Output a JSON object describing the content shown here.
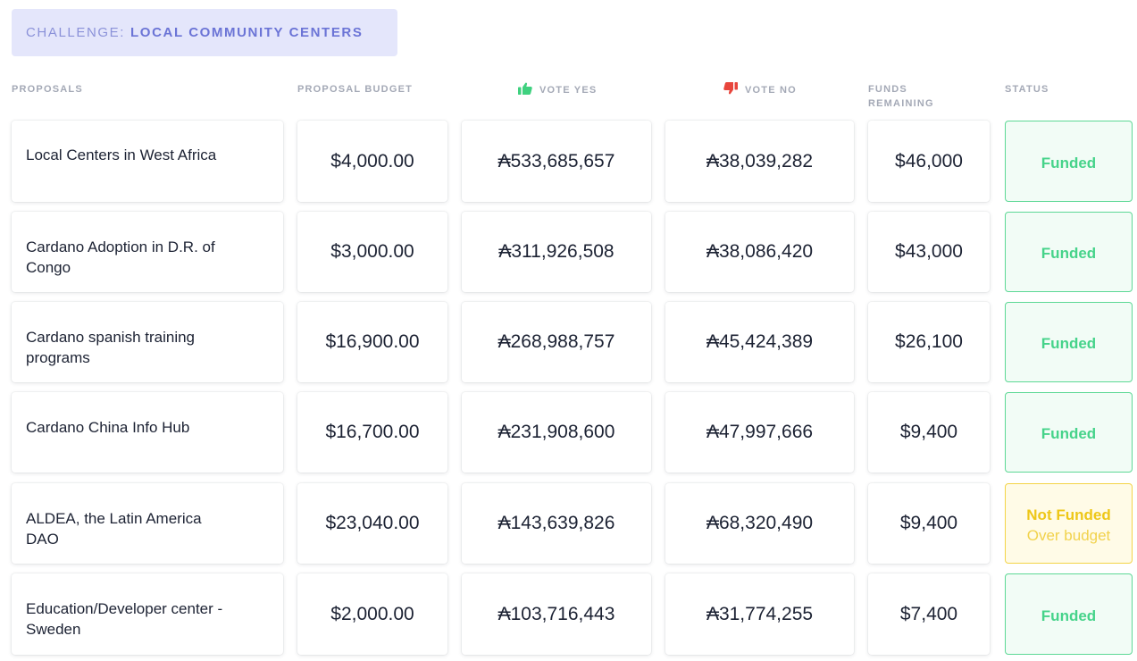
{
  "challenge": {
    "prefix": "CHALLENGE:",
    "name": "LOCAL COMMUNITY CENTERS"
  },
  "columns": {
    "proposals": "PROPOSALS",
    "budget": "PROPOSAL BUDGET",
    "vote_yes": "VOTE YES",
    "vote_no": "VOTE NO",
    "funds_remaining_line1": "FUNDS",
    "funds_remaining_line2": "REMAINING",
    "status": "STATUS"
  },
  "colors": {
    "funded": "#46d38a",
    "not_funded": "#eec718",
    "thumbs_up": "#3fd17f",
    "thumbs_down": "#e8453c"
  },
  "rows": [
    {
      "name": "Local Centers in West Africa",
      "budget": "$4,000.00",
      "yes": "₳533,685,657",
      "no": "₳38,039,282",
      "remaining": "$46,000",
      "status": "Funded",
      "status_sub": ""
    },
    {
      "name": "Cardano Adoption in D.R. of Congo",
      "budget": "$3,000.00",
      "yes": "₳311,926,508",
      "no": "₳38,086,420",
      "remaining": "$43,000",
      "status": "Funded",
      "status_sub": ""
    },
    {
      "name": "Cardano spanish training programs",
      "budget": "$16,900.00",
      "yes": "₳268,988,757",
      "no": "₳45,424,389",
      "remaining": "$26,100",
      "status": "Funded",
      "status_sub": ""
    },
    {
      "name": "Cardano China Info Hub",
      "budget": "$16,700.00",
      "yes": "₳231,908,600",
      "no": "₳47,997,666",
      "remaining": "$9,400",
      "status": "Funded",
      "status_sub": ""
    },
    {
      "name": "ALDEA, the Latin America DAO",
      "budget": "$23,040.00",
      "yes": "₳143,639,826",
      "no": "₳68,320,490",
      "remaining": "$9,400",
      "status": "Not Funded",
      "status_sub": "Over budget"
    },
    {
      "name": "Education/Developer center - Sweden",
      "budget": "$2,000.00",
      "yes": "₳103,716,443",
      "no": "₳31,774,255",
      "remaining": "$7,400",
      "status": "Funded",
      "status_sub": ""
    }
  ]
}
